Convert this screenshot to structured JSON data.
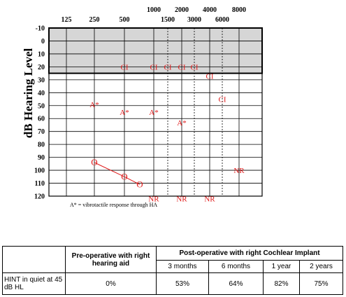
{
  "chart_data": {
    "type": "scatter",
    "ylabel": "dB Hearing Level",
    "xlabel": "",
    "x_ticks_top": [
      "125",
      "250",
      "500",
      "1000",
      "2000",
      "4000",
      "8000"
    ],
    "x_ticks_bottom": [
      "1500",
      "3000",
      "6000"
    ],
    "y_ticks": [
      -10,
      0,
      10,
      20,
      30,
      40,
      50,
      60,
      70,
      80,
      90,
      100,
      110,
      120
    ],
    "ylim": [
      -10,
      120
    ],
    "y_inverted": true,
    "shaded_band": [
      -10,
      25
    ],
    "grid": true,
    "series": [
      {
        "symbol": "CI",
        "x": [
          500,
          1000,
          1500,
          2000,
          3000,
          4000,
          6000
        ],
        "y": [
          20,
          20,
          20,
          20,
          20,
          27,
          45
        ],
        "color": "#e01b1b"
      },
      {
        "symbol": "A*",
        "x": [
          250,
          500,
          1000,
          2000
        ],
        "y": [
          49,
          55,
          55,
          63
        ],
        "color": "#e01b1b"
      },
      {
        "symbol": "O",
        "x": [
          250,
          500,
          750
        ],
        "y": [
          94,
          105,
          111
        ],
        "color": "#e01b1b",
        "connected": true
      },
      {
        "symbol": "NR",
        "x": [
          1000,
          2000,
          4000,
          8000
        ],
        "y": [
          122,
          122,
          122,
          100
        ],
        "color": "#e01b1b"
      }
    ],
    "annotation": "A* = vibrotactile response through HA"
  },
  "table": {
    "header_pre": "Pre-operative with right hearing aid",
    "header_post": "Post-operative with right Cochlear Implant",
    "sub_headers": [
      "3 months",
      "6 months",
      "1 year",
      "2 years"
    ],
    "row_label": "HINT in quiet at 45 dB HL",
    "values": [
      "0%",
      "53%",
      "64%",
      "82%",
      "75%"
    ]
  }
}
